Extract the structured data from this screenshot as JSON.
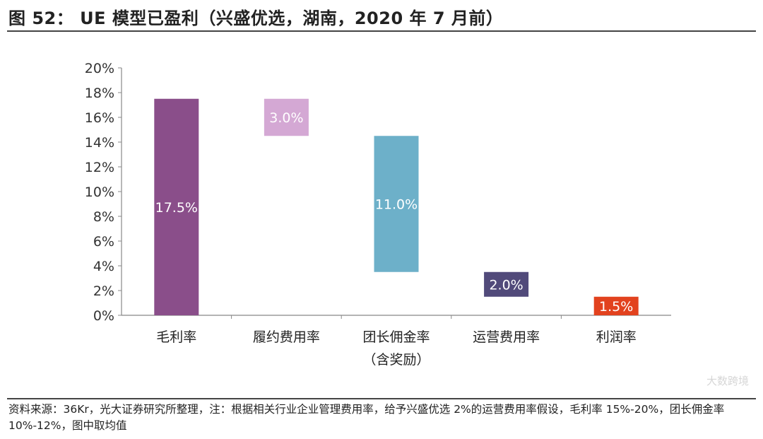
{
  "title": "图 52：  UE 模型已盈利（兴盛优选，湖南，2020 年 7 月前）",
  "footer": "资料来源：36Kr，光大证券研究所整理，注：根据相关行业企业管理费用率，给予兴盛优选 2%的运营费用率假设，毛利率 15%-20%，团长佣金率 10%-12%，图中取均值",
  "watermark": "大数跨境",
  "chart_data": {
    "type": "bar",
    "subtype": "waterfall",
    "categories": [
      [
        "毛利率"
      ],
      [
        "履约费用率"
      ],
      [
        "团长佣金率",
        "（含奖励）"
      ],
      [
        "运营费用率"
      ],
      [
        "利润率"
      ]
    ],
    "values": [
      17.5,
      3.0,
      11.0,
      2.0,
      1.5
    ],
    "ranges": [
      [
        0,
        17.5
      ],
      [
        14.5,
        17.5
      ],
      [
        3.5,
        14.5
      ],
      [
        1.5,
        3.5
      ],
      [
        0,
        1.5
      ]
    ],
    "labels": [
      "17.5%",
      "3.0%",
      "11.0%",
      "2.0%",
      "1.5%"
    ],
    "colors": [
      "#8A4E8A",
      "#D4A8D4",
      "#6DB0C9",
      "#514A7A",
      "#E2421E"
    ],
    "label_colors": [
      "#ffffff",
      "#ffffff",
      "#ffffff",
      "#ffffff",
      "#ffffff"
    ],
    "yticks": [
      "0%",
      "2%",
      "4%",
      "6%",
      "8%",
      "10%",
      "12%",
      "14%",
      "16%",
      "18%",
      "20%"
    ],
    "ylim": [
      0,
      20
    ],
    "grid": false,
    "legend": "none"
  }
}
